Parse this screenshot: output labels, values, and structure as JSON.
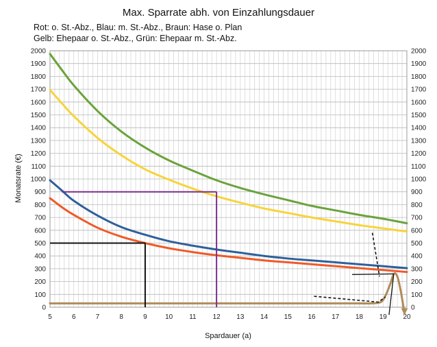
{
  "chart_data": {
    "type": "line",
    "title": "Max. Sparrate abh. von Einzahlungsdauer",
    "subtitle_lines": [
      "Rot: o. St.-Abz., Blau: m. St.-Abz., Braun: Hase o. Plan",
      "Gelb: Ehepaar o. St.-Abz., Grün: Ehepaar m. St.-Abz."
    ],
    "xlabel": "Spardauer (a)",
    "ylabel": "Monatsrate (€)",
    "xlim": [
      5,
      20
    ],
    "ylim": [
      0,
      2000
    ],
    "y_ticks": [
      0,
      100,
      200,
      300,
      400,
      500,
      600,
      700,
      800,
      900,
      1000,
      1100,
      1200,
      1300,
      1400,
      1500,
      1600,
      1700,
      1800,
      1900,
      2000
    ],
    "x_ticks": [
      5,
      6,
      7,
      8,
      9,
      10,
      11,
      12,
      13,
      14,
      15,
      16,
      17,
      18,
      19,
      20
    ],
    "grid": true,
    "x_minor_per_major": 5,
    "series": [
      {
        "color": "#6aa33a",
        "x": [
          5,
          5.5,
          6,
          7,
          8,
          9,
          10,
          11,
          12,
          13,
          14,
          15,
          16,
          17,
          18,
          19,
          20
        ],
        "values": [
          1975,
          1850,
          1730,
          1530,
          1370,
          1245,
          1145,
          1065,
          990,
          930,
          880,
          835,
          790,
          755,
          720,
          690,
          655
        ]
      },
      {
        "color": "#f7d43a",
        "x": [
          5,
          5.5,
          6,
          7,
          8,
          9,
          10,
          11,
          12,
          13,
          14,
          15,
          16,
          17,
          18,
          19,
          20
        ],
        "values": [
          1695,
          1590,
          1490,
          1320,
          1185,
          1075,
          995,
          925,
          865,
          815,
          770,
          735,
          700,
          670,
          640,
          615,
          590
        ]
      },
      {
        "color": "#2e5f9a",
        "x": [
          5,
          5.5,
          6,
          7,
          8,
          9,
          10,
          11,
          12,
          13,
          14,
          15,
          16,
          17,
          18,
          19,
          20
        ],
        "values": [
          990,
          910,
          830,
          715,
          625,
          565,
          515,
          480,
          450,
          425,
          400,
          380,
          365,
          350,
          335,
          320,
          305
        ]
      },
      {
        "color": "#ef5a28",
        "x": [
          5,
          5.5,
          6,
          7,
          8,
          9,
          10,
          11,
          12,
          13,
          14,
          15,
          16,
          17,
          18,
          19,
          20
        ],
        "values": [
          850,
          780,
          720,
          620,
          550,
          500,
          460,
          430,
          405,
          385,
          365,
          350,
          335,
          320,
          305,
          290,
          275
        ]
      },
      {
        "color": "#b08b5a",
        "x": [
          5,
          6,
          8,
          10,
          12,
          14,
          16,
          17,
          18,
          18.5,
          18.9,
          19.1,
          19.3,
          19.45,
          19.6,
          19.75,
          19.9
        ],
        "values": [
          30,
          30,
          30,
          30,
          30,
          30,
          30,
          30,
          30,
          30,
          40,
          90,
          180,
          260,
          240,
          120,
          -50
        ]
      }
    ],
    "annotations": {
      "purple_lines": [
        {
          "x": [
            5.5,
            12
          ],
          "y": [
            900,
            900
          ]
        },
        {
          "x": [
            12,
            12
          ],
          "y": [
            900,
            0
          ]
        }
      ],
      "black_lines": [
        {
          "x": [
            5,
            9
          ],
          "y": [
            500,
            500
          ]
        },
        {
          "x": [
            9,
            9
          ],
          "y": [
            500,
            0
          ]
        }
      ]
    }
  }
}
